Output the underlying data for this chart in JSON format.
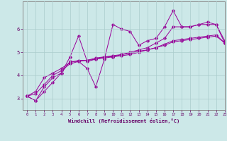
{
  "xlabel": "Windchill (Refroidissement éolien,°C)",
  "xlim": [
    -0.5,
    23
  ],
  "ylim": [
    2.5,
    7.2
  ],
  "xticks": [
    0,
    1,
    2,
    3,
    4,
    5,
    6,
    7,
    8,
    9,
    10,
    11,
    12,
    13,
    14,
    15,
    16,
    17,
    18,
    19,
    20,
    21,
    22,
    23
  ],
  "yticks": [
    3,
    4,
    5,
    6
  ],
  "background_color": "#cce8e8",
  "line_color": "#990099",
  "grid_color": "#aacccc",
  "series": [
    [
      3.1,
      2.9,
      3.3,
      3.7,
      4.1,
      4.6,
      4.6,
      4.3,
      3.5,
      4.7,
      6.2,
      6.0,
      5.9,
      5.3,
      5.5,
      5.6,
      6.1,
      6.8,
      6.1,
      6.1,
      6.2,
      6.3,
      6.2,
      5.4
    ],
    [
      3.1,
      2.9,
      3.5,
      3.9,
      4.1,
      4.8,
      5.7,
      4.6,
      4.7,
      4.8,
      4.8,
      4.9,
      5.0,
      5.1,
      5.2,
      5.4,
      5.6,
      6.1,
      6.1,
      6.1,
      6.2,
      6.2,
      6.2,
      5.5
    ],
    [
      3.1,
      3.3,
      3.9,
      4.1,
      4.3,
      4.55,
      4.65,
      4.65,
      4.75,
      4.8,
      4.85,
      4.9,
      4.95,
      5.05,
      5.1,
      5.2,
      5.35,
      5.5,
      5.55,
      5.6,
      5.65,
      5.7,
      5.75,
      5.4
    ],
    [
      3.1,
      3.2,
      3.6,
      4.0,
      4.2,
      4.5,
      4.6,
      4.65,
      4.7,
      4.75,
      4.8,
      4.85,
      4.9,
      5.0,
      5.1,
      5.2,
      5.3,
      5.45,
      5.5,
      5.55,
      5.6,
      5.65,
      5.7,
      5.4
    ]
  ]
}
